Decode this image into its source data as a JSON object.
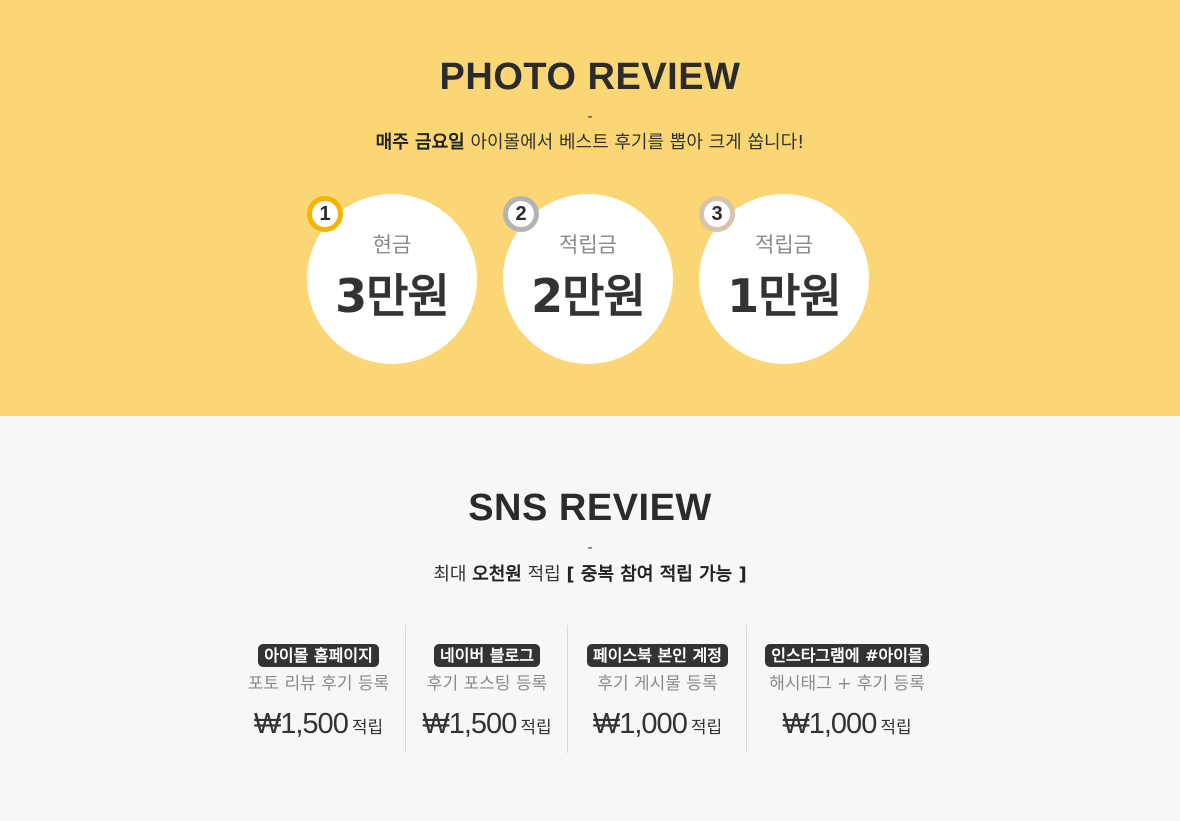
{
  "photo_review": {
    "title": "PHOTO REVIEW",
    "dash": "-",
    "subtitle_bold": "매주 금요일",
    "subtitle_rest": " 아이몰에서 베스트 후기를 뽑아 크게 쏩니다!",
    "prizes": [
      {
        "rank": "1",
        "kind": "현금",
        "amount": "3만원",
        "badge_color": "#f5b400"
      },
      {
        "rank": "2",
        "kind": "적립금",
        "amount": "2만원",
        "badge_color": "#b3b3b3"
      },
      {
        "rank": "3",
        "kind": "적립금",
        "amount": "1만원",
        "badge_color": "#d8c3ac"
      }
    ]
  },
  "sns_review": {
    "title": "SNS REVIEW",
    "dash": "-",
    "sub_1": "최대 ",
    "sub_2": "오천원",
    "sub_3": " 적립 ",
    "sub_4": "[ 중복 참여 적립 가능 ]",
    "items": [
      {
        "tag": "아이몰 홈페이지",
        "desc": "포토 리뷰 후기 등록",
        "price": "₩1,500",
        "unit": "적립"
      },
      {
        "tag": "네이버 블로그",
        "desc": "후기 포스팅 등록",
        "price": "₩1,500",
        "unit": "적립"
      },
      {
        "tag": "페이스북 본인 계정",
        "desc": "후기 게시물 등록",
        "price": "₩1,000",
        "unit": "적립"
      },
      {
        "tag": "인스타그램에 #아이몰",
        "desc": "해시태그 + 후기 등록",
        "price": "₩1,000",
        "unit": "적립"
      }
    ]
  }
}
